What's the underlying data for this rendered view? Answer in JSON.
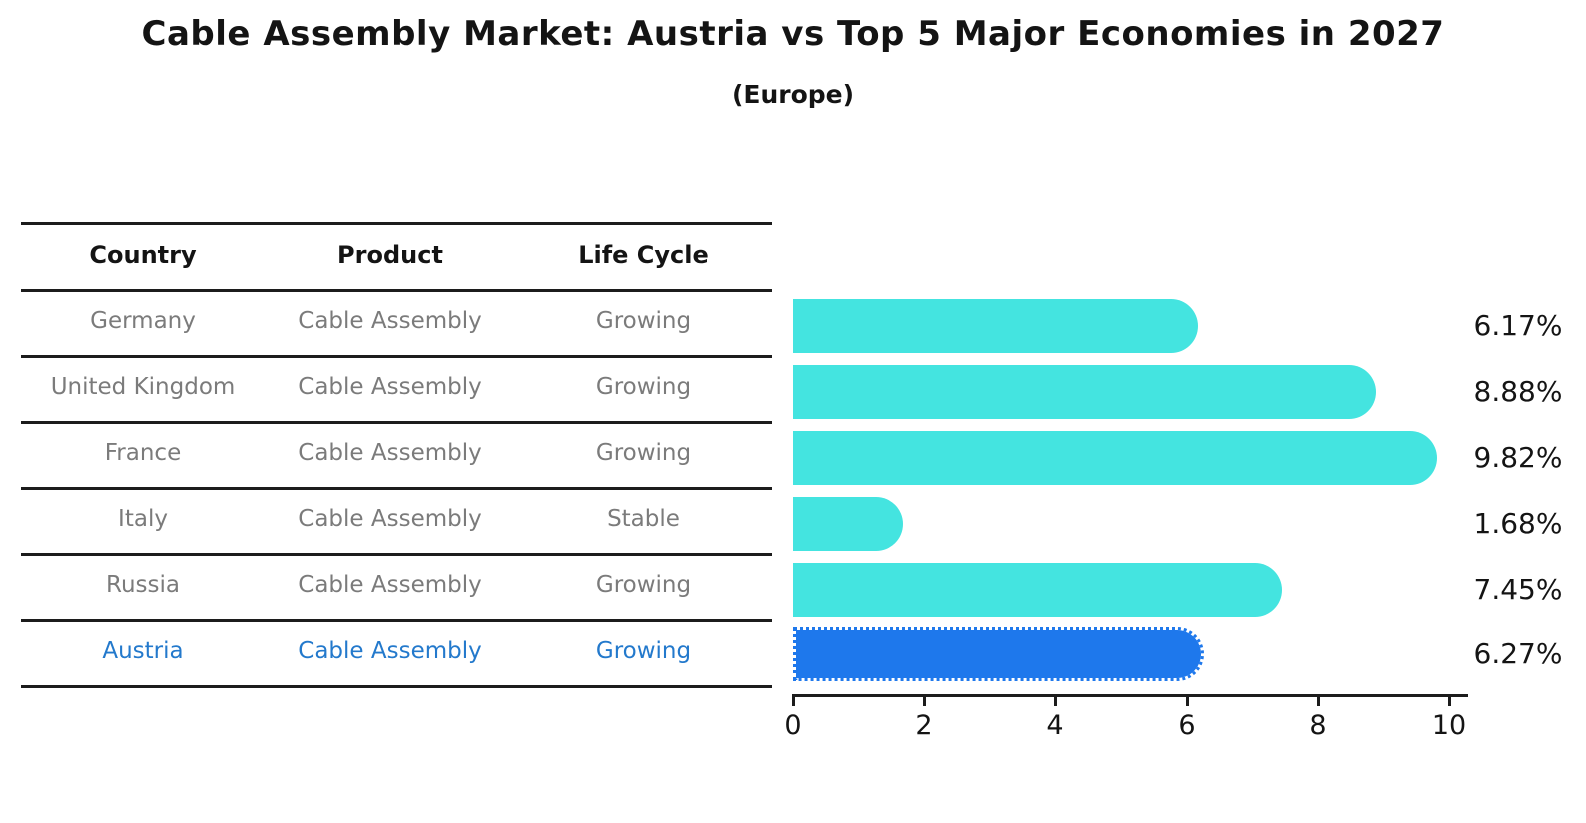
{
  "header": {
    "title": "Cable Assembly Market: Austria vs Top 5 Major Economies in 2027",
    "subtitle": "(Europe)"
  },
  "table": {
    "columns": {
      "country": "Country",
      "product": "Product",
      "life_cycle": "Life Cycle"
    },
    "rows": [
      {
        "country": "Germany",
        "product": "Cable Assembly",
        "life_cycle": "Growing"
      },
      {
        "country": "United Kingdom",
        "product": "Cable Assembly",
        "life_cycle": "Growing"
      },
      {
        "country": "France",
        "product": "Cable Assembly",
        "life_cycle": "Growing"
      },
      {
        "country": "Italy",
        "product": "Cable Assembly",
        "life_cycle": "Stable"
      },
      {
        "country": "Russia",
        "product": "Cable Assembly",
        "life_cycle": "Growing"
      },
      {
        "country": "Austria",
        "product": "Cable Assembly",
        "life_cycle": "Growing"
      }
    ],
    "highlighted_row": "Austria"
  },
  "chart_data": {
    "type": "bar",
    "orientation": "horizontal",
    "title": "Cable Assembly Market: Austria vs Top 5 Major Economies in 2027",
    "subtitle": "(Europe)",
    "categories": [
      "Germany",
      "United Kingdom",
      "France",
      "Italy",
      "Russia",
      "Austria"
    ],
    "values": [
      6.17,
      8.88,
      9.82,
      1.68,
      7.45,
      6.27
    ],
    "value_labels": [
      "6.17%",
      "8.88%",
      "9.82%",
      "1.68%",
      "7.45%",
      "6.27%"
    ],
    "x_ticks": [
      "0",
      "2",
      "4",
      "6",
      "8",
      "10"
    ],
    "x_tick_values": [
      0,
      2,
      4,
      6,
      8,
      10
    ],
    "xlim": [
      0,
      10.3
    ],
    "grid": false,
    "legend": "none",
    "bar_color": "#44E4E0",
    "highlight_color": "#1E78EC",
    "highlight_index": 5,
    "text_color_muted": "#7b7b7b",
    "highlight_text_color": "#2379CC"
  }
}
